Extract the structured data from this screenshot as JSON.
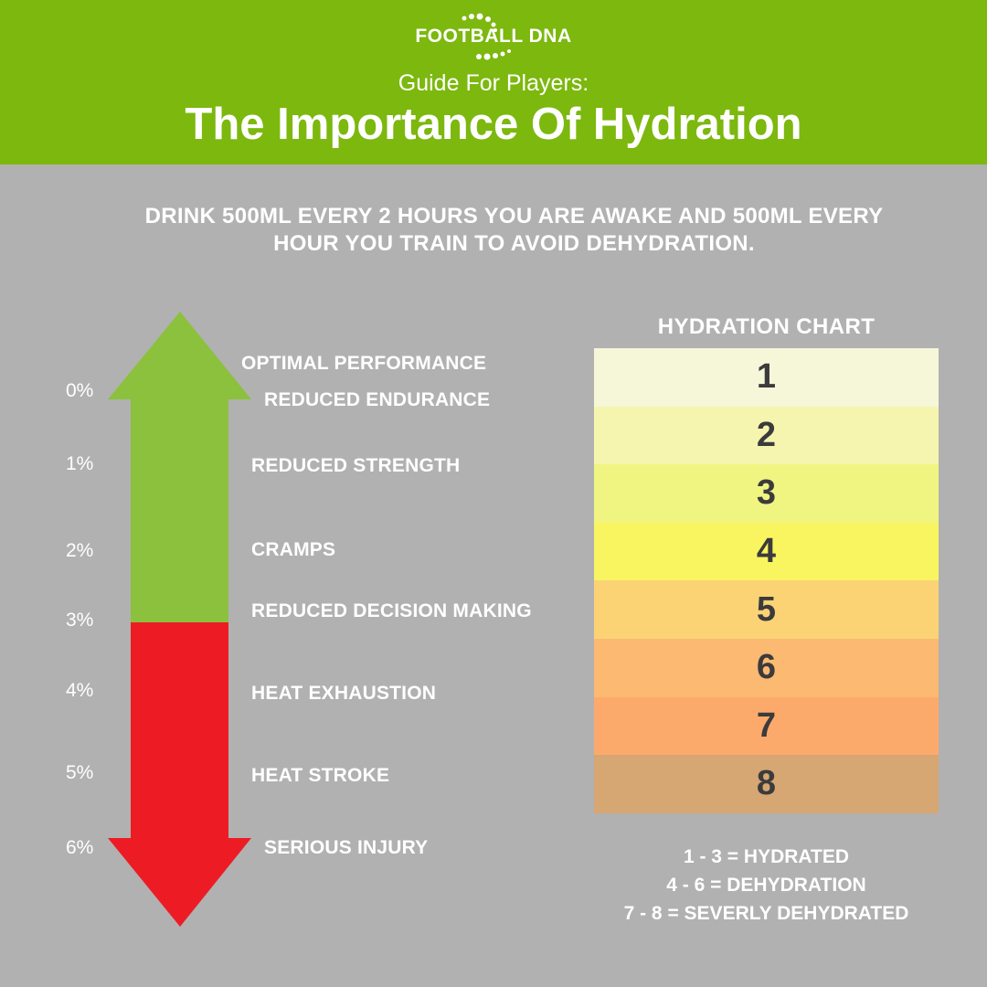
{
  "header": {
    "logo_text": "FOOTBALL DNA",
    "subtitle": "Guide For Players:",
    "title": "The Importance Of Hydration"
  },
  "intro": {
    "line1": "DRINK 500ML EVERY 2 HOURS YOU ARE AWAKE AND 500ML EVERY",
    "line2": "HOUR YOU TRAIN TO AVOID DEHYDRATION."
  },
  "scale": {
    "percentages": [
      "0%",
      "1%",
      "2%",
      "3%",
      "4%",
      "5%",
      "6%"
    ],
    "effects": [
      "OPTIMAL PERFORMANCE",
      "REDUCED ENDURANCE",
      "REDUCED STRENGTH",
      "CRAMPS",
      "REDUCED DECISION MAKING",
      "HEAT EXHAUSTION",
      "HEAT STROKE",
      "SERIOUS INJURY"
    ],
    "colors": {
      "safe": "#8bc13d",
      "danger": "#ed1c24"
    }
  },
  "chart": {
    "title": "HYDRATION CHART",
    "levels": [
      "1",
      "2",
      "3",
      "4",
      "5",
      "6",
      "7",
      "8"
    ],
    "level_colors": [
      "#f5f7d8",
      "#f6f5b0",
      "#f0f582",
      "#f8f560",
      "#fbd375",
      "#fcb971",
      "#fcaa6c",
      "#d6a673"
    ]
  },
  "legend": {
    "line1": "1 - 3 = HYDRATED",
    "line2": "4 - 6 = DEHYDRATION",
    "line3": "7 - 8 = SEVERLY DEHYDRATED"
  }
}
